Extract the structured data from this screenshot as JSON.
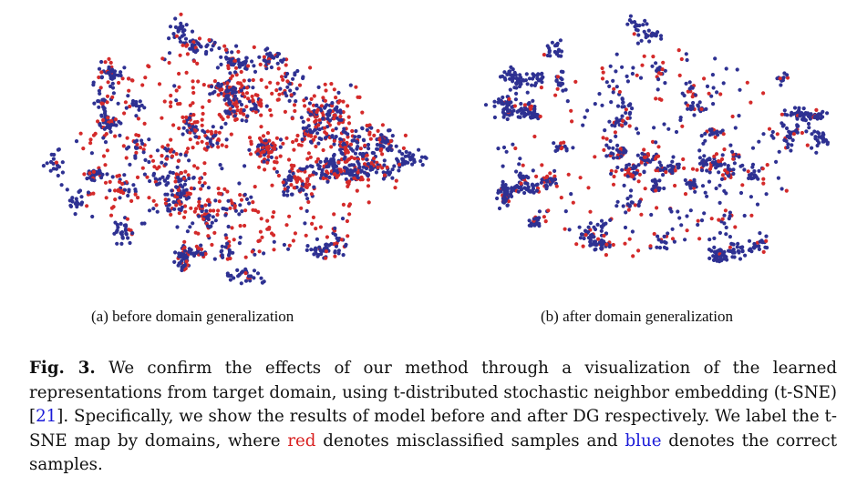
{
  "figure": {
    "colors": {
      "misclassified": "#d42a2a",
      "correct": "#2e3192"
    },
    "panels": [
      {
        "id": "a",
        "subcaption": "(a) before domain generalization"
      },
      {
        "id": "b",
        "subcaption": "(b) after domain generalization"
      }
    ]
  },
  "caption": {
    "label": "Fig. 3.",
    "part1": " We confirm the effects of our method through a visualization of the learned representations from target domain, using t-distributed stochastic neighbor embedding (t-SNE) [",
    "citation": "21",
    "part2": "]. Specifically, we show the results of model before and after DG respectively. We label the t-SNE map by domains, where ",
    "red_word": "red",
    "part3": " denotes misclassified samples and ",
    "blue_word": "blue",
    "part4": " denotes the correct samples."
  }
}
